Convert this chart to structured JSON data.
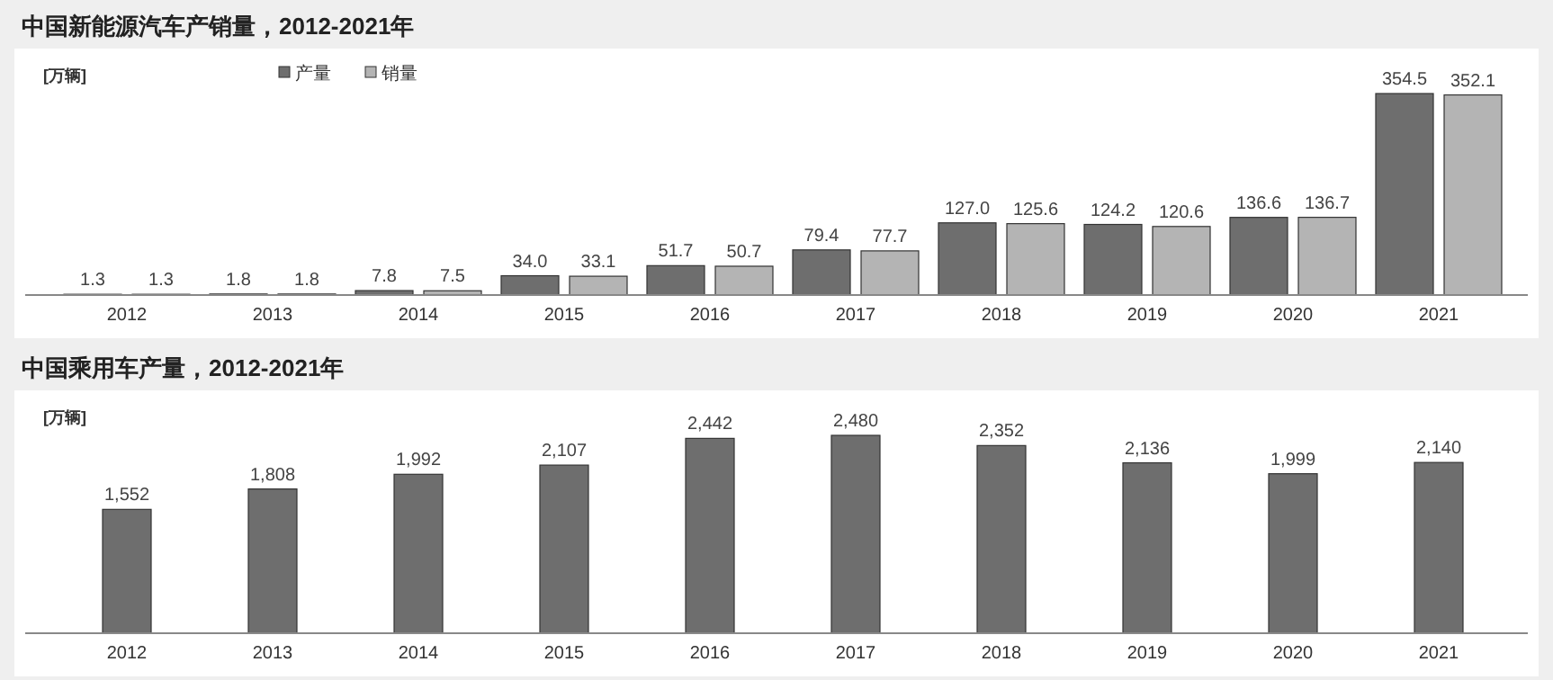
{
  "chart_data": [
    {
      "type": "bar",
      "title": "中国新能源汽车产销量，2012-2021年",
      "ylabel": "[万辆]",
      "legend": "top left",
      "categories": [
        "2012",
        "2013",
        "2014",
        "2015",
        "2016",
        "2017",
        "2018",
        "2019",
        "2020",
        "2021"
      ],
      "series": [
        {
          "name": "产量",
          "color": "#6e6e6e",
          "values": [
            1.3,
            1.8,
            7.8,
            34.0,
            51.7,
            79.4,
            127.0,
            124.2,
            136.6,
            354.5
          ],
          "value_labels": [
            "1.3",
            "1.8",
            "7.8",
            "34.0",
            "51.7",
            "79.4",
            "127.0",
            "124.2",
            "136.6",
            "354.5"
          ]
        },
        {
          "name": "销量",
          "color": "#b4b4b4",
          "values": [
            1.3,
            1.8,
            7.5,
            33.1,
            50.7,
            77.7,
            125.6,
            120.6,
            136.7,
            352.1
          ],
          "value_labels": [
            "1.3",
            "1.8",
            "7.5",
            "33.1",
            "50.7",
            "77.7",
            "125.6",
            "120.6",
            "136.7",
            "352.1"
          ]
        }
      ]
    },
    {
      "type": "bar",
      "title": "中国乘用车产量，2012-2021年",
      "ylabel": "[万辆]",
      "categories": [
        "2012",
        "2013",
        "2014",
        "2015",
        "2016",
        "2017",
        "2018",
        "2019",
        "2020",
        "2021"
      ],
      "color": "#6e6e6e",
      "values": [
        1552,
        1808,
        1992,
        2107,
        2442,
        2480,
        2352,
        2136,
        1999,
        2140
      ],
      "value_labels": [
        "1,552",
        "1,808",
        "1,992",
        "2,107",
        "2,442",
        "2,480",
        "2,352",
        "2,136",
        "1,999",
        "2,140"
      ]
    }
  ]
}
